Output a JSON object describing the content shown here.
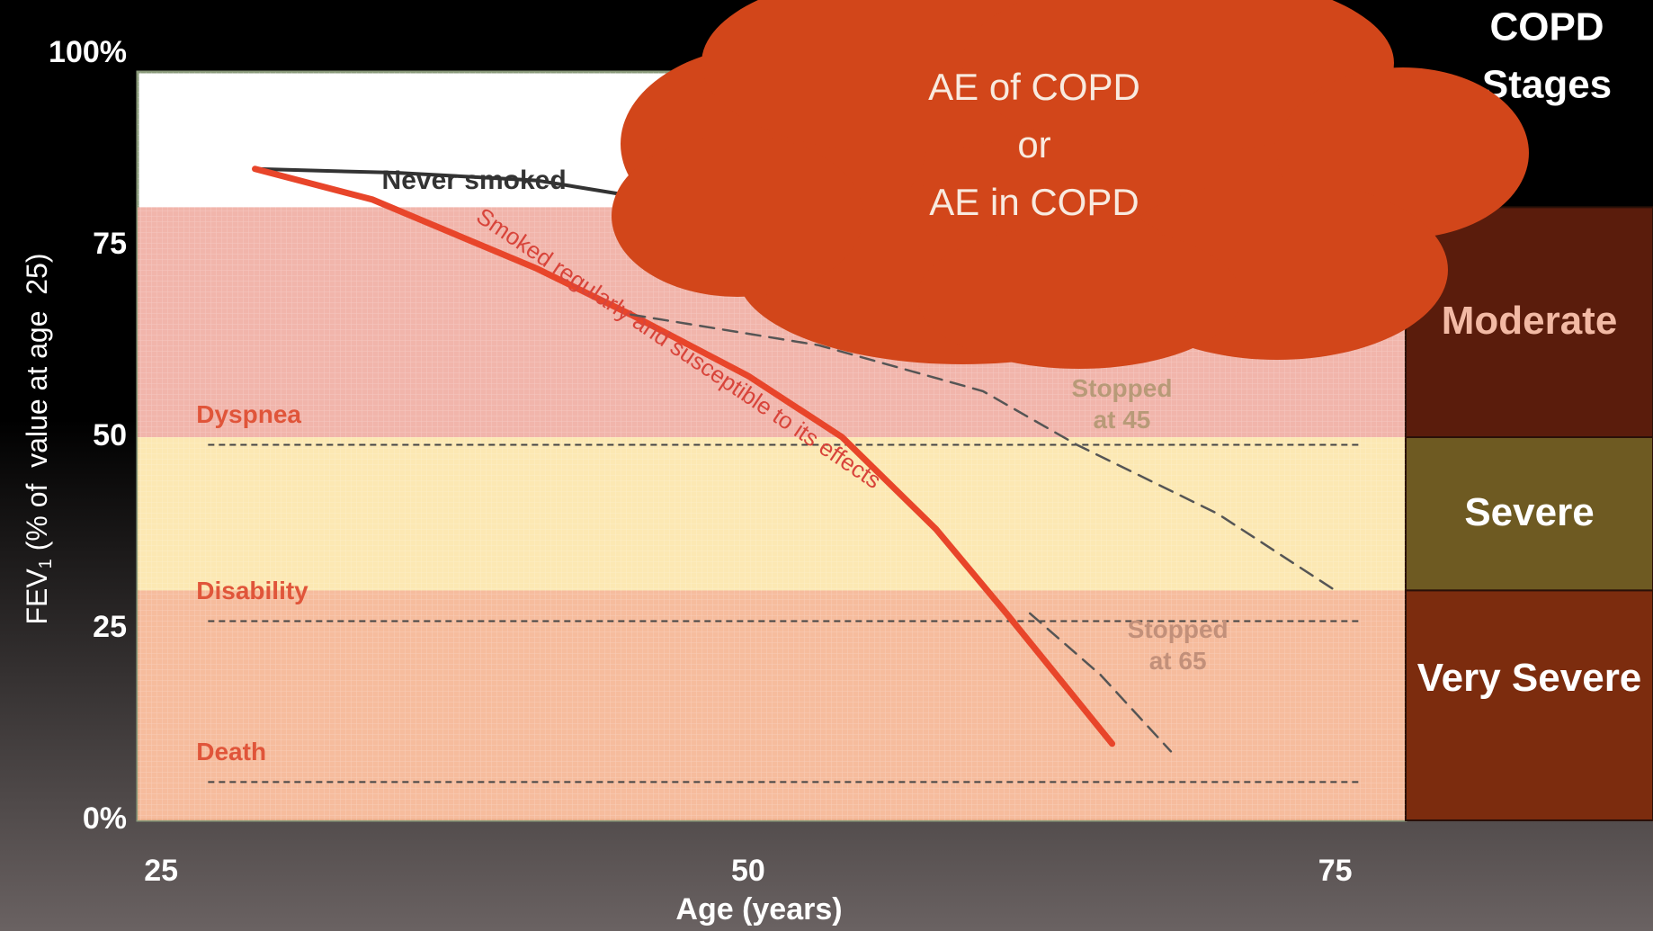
{
  "chart_data": {
    "type": "line",
    "xlabel": "Age (years)",
    "ylabel": {
      "main": "FEV",
      "sub": "1",
      "rest": " (% of  value at age  25)"
    },
    "xlim": [
      24,
      78
    ],
    "ylim": [
      0,
      100
    ],
    "xticks": [
      25,
      50,
      75
    ],
    "yticks": [
      {
        "value": 0,
        "label": "0%"
      },
      25,
      50,
      75,
      {
        "value": 100,
        "label": "100%"
      }
    ],
    "series": [
      {
        "name": "Never smoked",
        "color": "#333333",
        "dashed": false,
        "x": [
          29,
          35,
          41,
          50,
          60,
          70,
          71
        ],
        "values": [
          85,
          84.5,
          83.5,
          79,
          73,
          68,
          65
        ]
      },
      {
        "name": "Smoked regularly and susceptible to its effects",
        "color": "#e8452a",
        "dashed": false,
        "x": [
          29,
          34,
          41,
          45,
          50,
          54,
          58,
          61,
          65.5
        ],
        "values": [
          85,
          81,
          72,
          66,
          58,
          50,
          38,
          27,
          10
        ]
      },
      {
        "name": "Stopped at 45",
        "color": "#555555",
        "dashed": true,
        "x": [
          45,
          53,
          60,
          64,
          70,
          75
        ],
        "values": [
          66,
          62,
          56,
          49,
          40,
          30
        ]
      },
      {
        "name": "Stopped at 65",
        "color": "#555555",
        "dashed": true,
        "x": [
          62,
          65,
          68
        ],
        "values": [
          27,
          19,
          9
        ]
      }
    ],
    "thresholds": [
      {
        "label": "Dyspnea",
        "value": 49
      },
      {
        "label": "Disability",
        "value": 26
      },
      {
        "label": "Death",
        "value": 5
      }
    ],
    "stages_title": [
      "COPD",
      "Stages"
    ],
    "stages": [
      {
        "label": "Moderate",
        "from": 50,
        "to": 80,
        "color": "#5a1c0c",
        "fill": "#eea89c",
        "text_color": "#f2b9a4"
      },
      {
        "label": "Severe",
        "from": 30,
        "to": 50,
        "color": "#6e5a22",
        "fill": "#fbe4a6",
        "text_color": "#ffffff"
      },
      {
        "label": "Very Severe",
        "from": 0,
        "to": 30,
        "color": "#7c2c0e",
        "fill": "#f5b08c",
        "text_color": "#ffffff"
      }
    ],
    "annotation": [
      "AE of COPD",
      "or",
      "AE in COPD"
    ]
  }
}
